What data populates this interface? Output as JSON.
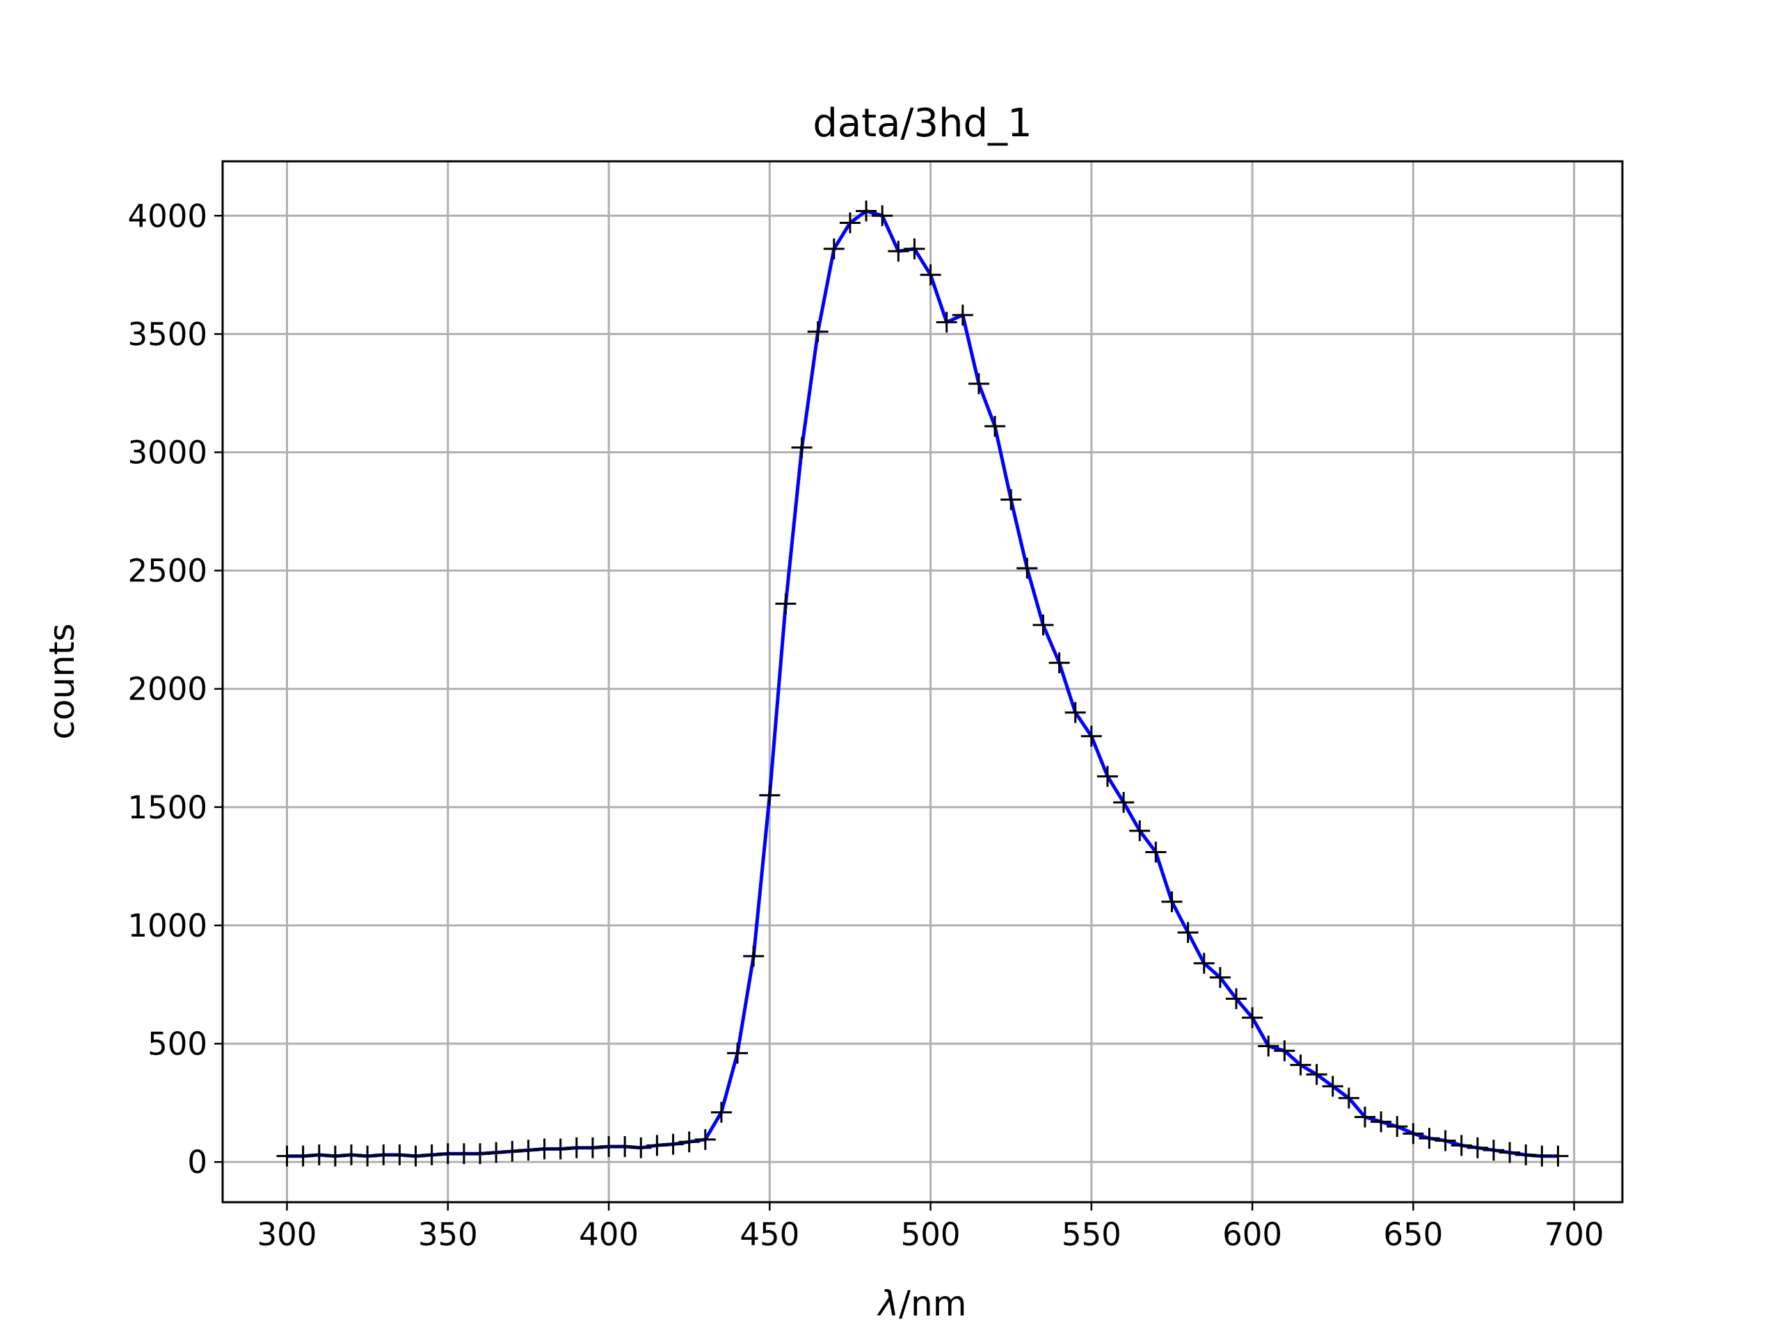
{
  "chart_data": {
    "type": "line",
    "title": "data/3hd_1",
    "xlabel_symbol": "λ",
    "xlabel_unit": "/nm",
    "ylabel": "counts",
    "xlim": [
      280,
      715
    ],
    "ylim": [
      -170,
      4230
    ],
    "xticks": [
      300,
      350,
      400,
      450,
      500,
      550,
      600,
      650,
      700
    ],
    "yticks": [
      0,
      500,
      1000,
      1500,
      2000,
      2500,
      3000,
      3500,
      4000
    ],
    "grid": true,
    "series": [
      {
        "line_color": "#0000ff",
        "marker": "+",
        "marker_color": "#000000",
        "x": [
          300,
          305,
          310,
          315,
          320,
          325,
          330,
          335,
          340,
          345,
          350,
          355,
          360,
          365,
          370,
          375,
          380,
          385,
          390,
          395,
          400,
          405,
          410,
          415,
          420,
          425,
          430,
          435,
          440,
          445,
          450,
          455,
          460,
          465,
          470,
          475,
          480,
          485,
          490,
          495,
          500,
          505,
          510,
          515,
          520,
          525,
          530,
          535,
          540,
          545,
          550,
          555,
          560,
          565,
          570,
          575,
          580,
          585,
          590,
          595,
          600,
          605,
          610,
          615,
          620,
          625,
          630,
          635,
          640,
          645,
          650,
          655,
          660,
          665,
          670,
          675,
          680,
          685,
          690,
          695
        ],
        "y": [
          25,
          25,
          30,
          25,
          30,
          25,
          30,
          30,
          25,
          30,
          35,
          35,
          35,
          40,
          45,
          50,
          55,
          55,
          60,
          60,
          65,
          65,
          60,
          70,
          75,
          85,
          95,
          210,
          460,
          870,
          1550,
          2360,
          3020,
          3510,
          3860,
          3970,
          4020,
          4000,
          3850,
          3860,
          3750,
          3550,
          3580,
          3290,
          3110,
          2800,
          2510,
          2270,
          2110,
          1900,
          1800,
          1630,
          1520,
          1400,
          1310,
          1100,
          970,
          840,
          780,
          690,
          610,
          490,
          470,
          410,
          370,
          320,
          270,
          190,
          170,
          150,
          120,
          100,
          90,
          70,
          60,
          50,
          40,
          30,
          25,
          25
        ]
      }
    ]
  }
}
